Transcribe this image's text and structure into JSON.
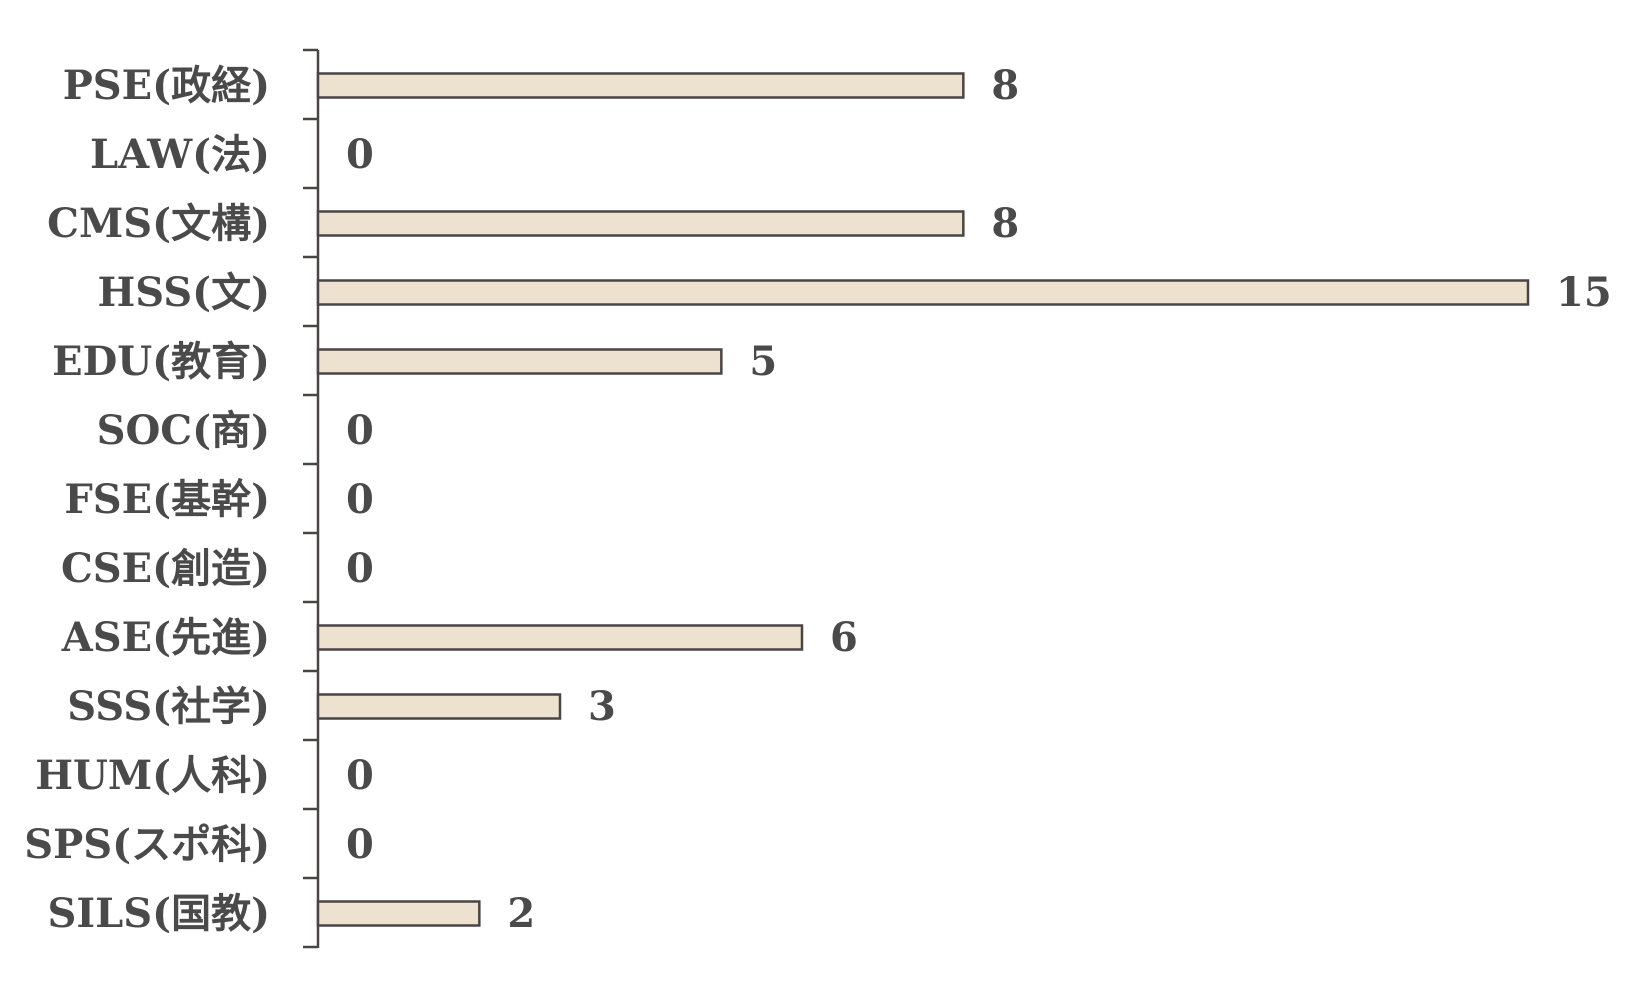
{
  "chart_data": {
    "type": "bar",
    "orientation": "horizontal",
    "categories": [
      "PSE(政経)",
      "LAW(法)",
      "CMS(文構)",
      "HSS(文)",
      "EDU(教育)",
      "SOC(商)",
      "FSE(基幹)",
      "CSE(創造)",
      "ASE(先進)",
      "SSS(社学)",
      "HUM(人科)",
      "SPS(スポ科)",
      "SILS(国教)"
    ],
    "values": [
      8,
      0,
      8,
      15,
      5,
      0,
      0,
      0,
      6,
      3,
      0,
      0,
      2
    ],
    "data_labels": [
      "8",
      "0",
      "8",
      "15",
      "5",
      "0",
      "0",
      "0",
      "6",
      "3",
      "0",
      "0",
      "2"
    ],
    "xlim": [
      0,
      15
    ],
    "grid": false,
    "legend": "none",
    "colors": {
      "bar_fill": "#ede1cf",
      "bar_stroke": "#4a4545",
      "axis": "#4a4545",
      "text": "#4a4a4a"
    }
  }
}
